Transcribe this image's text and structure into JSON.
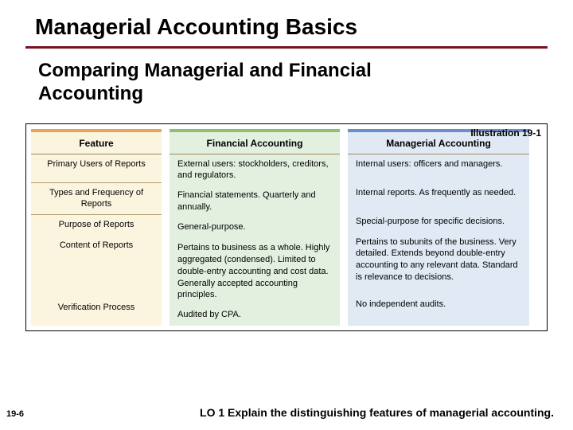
{
  "title": "Managerial Accounting Basics",
  "subtitle": "Comparing Managerial and Financial Accounting",
  "illustration_label": "Illustration 19-1",
  "page_num": "19-6",
  "learning_objective": "LO 1  Explain the distinguishing features of managerial accounting.",
  "colors": {
    "rule": "#7a1024",
    "feature_bg": "#fbf5e0",
    "feature_accent": "#e9a65b",
    "fin_bg": "#e3f0e0",
    "fin_accent": "#8fbf6f",
    "mgr_bg": "#e0e9f4",
    "mgr_accent": "#6b8fc9"
  },
  "table": {
    "headers": {
      "feature": "Feature",
      "financial": "Financial Accounting",
      "managerial": "Managerial Accounting"
    },
    "rows": [
      {
        "feature": "Primary Users of Reports",
        "financial": "External users: stockholders, creditors, and regulators.",
        "managerial": "Internal users: officers and managers."
      },
      {
        "feature": "Types and Frequency of Reports",
        "financial": "Financial statements. Quarterly and annually.",
        "managerial": "Internal reports. As frequently as needed."
      },
      {
        "feature": "Purpose of Reports",
        "financial": "General-purpose.",
        "managerial": "Special-purpose for specific decisions."
      },
      {
        "feature": "Content of Reports",
        "financial": "Pertains to business as a whole. Highly aggregated (condensed). Limited to double-entry accounting and cost data. Generally accepted accounting principles.",
        "managerial": "Pertains to subunits of the business. Very detailed. Extends beyond double-entry accounting to any relevant data. Standard is relevance to decisions."
      },
      {
        "feature": "Verification Process",
        "financial": "Audited by CPA.",
        "managerial": "No independent audits."
      }
    ]
  }
}
